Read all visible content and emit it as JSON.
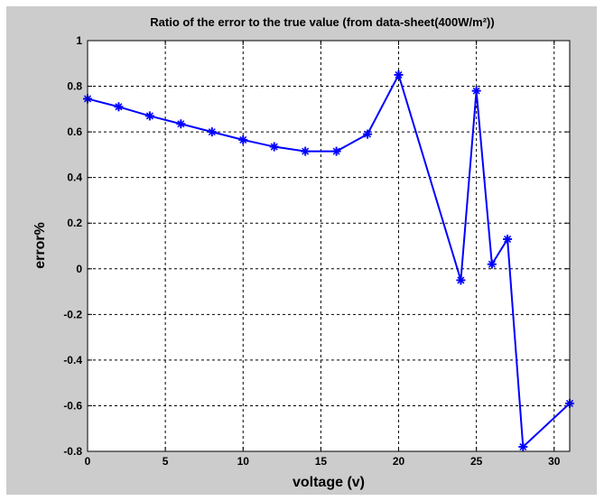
{
  "chart_data": {
    "type": "line",
    "title": "Ratio of the error to the true value (from data-sheet(400W/m²))",
    "xlabel": "voltage (v)",
    "ylabel": "error%",
    "xlim": [
      0,
      31
    ],
    "ylim": [
      -0.8,
      1
    ],
    "xticks": [
      0,
      5,
      10,
      15,
      20,
      25,
      30
    ],
    "yticks": [
      -0.8,
      -0.6,
      -0.4,
      -0.2,
      0,
      0.2,
      0.4,
      0.6,
      0.8,
      1
    ],
    "xtick_labels": [
      "0",
      "5",
      "10",
      "15",
      "20",
      "25",
      "30"
    ],
    "ytick_labels": [
      "-0.8",
      "-0.6",
      "-0.4",
      "-0.2",
      "0",
      "0.2",
      "0.4",
      "0.6",
      "0.8",
      "1"
    ],
    "grid": true,
    "series": [
      {
        "color": "#0000ff",
        "marker": "star",
        "x": [
          0,
          2,
          4,
          6,
          8,
          10,
          12,
          14,
          16,
          18,
          20,
          24,
          25,
          26,
          27,
          28,
          31
        ],
        "y": [
          0.745,
          0.71,
          0.67,
          0.635,
          0.6,
          0.565,
          0.535,
          0.515,
          0.515,
          0.59,
          0.85,
          -0.05,
          0.78,
          0.02,
          0.13,
          -0.78,
          -0.59
        ]
      }
    ]
  }
}
